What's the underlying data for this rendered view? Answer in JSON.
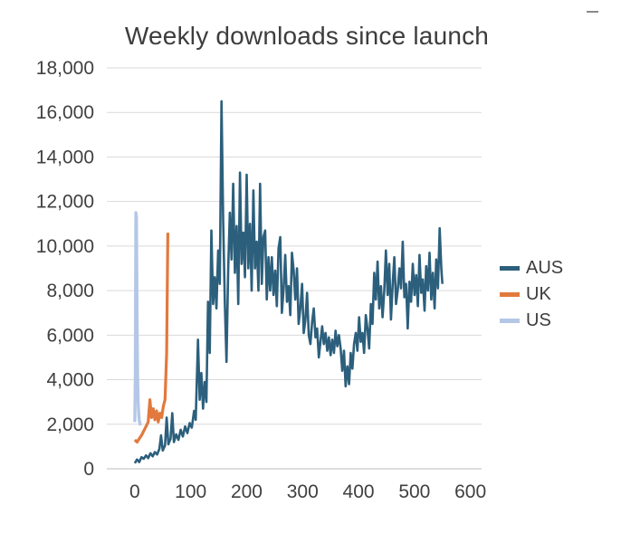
{
  "chart_data": {
    "type": "line",
    "title": "Weekly downloads since launch",
    "xlabel": "",
    "ylabel": "",
    "xlim": [
      0,
      600
    ],
    "ylim": [
      0,
      18000
    ],
    "grid": true,
    "legend_position": "right",
    "x_ticks": [
      0,
      100,
      200,
      300,
      400,
      500,
      600
    ],
    "x_tick_labels": [
      "0",
      "100",
      "200",
      "300",
      "400",
      "500",
      "600"
    ],
    "y_ticks": [
      0,
      2000,
      4000,
      6000,
      8000,
      10000,
      12000,
      14000,
      16000,
      18000
    ],
    "y_tick_labels": [
      "0",
      "2,000",
      "4,000",
      "6,000",
      "8,000",
      "10,000",
      "12,000",
      "14,000",
      "16,000",
      "18,000"
    ],
    "colors": {
      "grid": "#d9d9d9",
      "axis": "#bdbdbd",
      "text": "#404040",
      "title": "#3d3d3d"
    },
    "series": [
      {
        "name": "AUS",
        "color": "#2c5f7c",
        "width": 2.6,
        "points": [
          [
            0,
            250
          ],
          [
            4,
            420
          ],
          [
            8,
            300
          ],
          [
            12,
            520
          ],
          [
            16,
            450
          ],
          [
            20,
            600
          ],
          [
            24,
            480
          ],
          [
            28,
            700
          ],
          [
            32,
            560
          ],
          [
            36,
            750
          ],
          [
            40,
            640
          ],
          [
            44,
            900
          ],
          [
            47,
            1500
          ],
          [
            50,
            820
          ],
          [
            54,
            1050
          ],
          [
            57,
            2300
          ],
          [
            60,
            1100
          ],
          [
            64,
            1350
          ],
          [
            67,
            2500
          ],
          [
            70,
            1200
          ],
          [
            74,
            1550
          ],
          [
            78,
            1300
          ],
          [
            82,
            1750
          ],
          [
            86,
            1450
          ],
          [
            90,
            1900
          ],
          [
            94,
            1600
          ],
          [
            98,
            2050
          ],
          [
            102,
            1850
          ],
          [
            106,
            2600
          ],
          [
            109,
            2200
          ],
          [
            113,
            5800
          ],
          [
            116,
            3100
          ],
          [
            119,
            4300
          ],
          [
            122,
            2700
          ],
          [
            125,
            3900
          ],
          [
            128,
            3000
          ],
          [
            131,
            7500
          ],
          [
            134,
            5200
          ],
          [
            137,
            10700
          ],
          [
            140,
            7400
          ],
          [
            143,
            8600
          ],
          [
            146,
            7200
          ],
          [
            149,
            9800
          ],
          [
            152,
            8300
          ],
          [
            155,
            16500
          ],
          [
            158,
            11200
          ],
          [
            161,
            7400
          ],
          [
            164,
            4800
          ],
          [
            167,
            9000
          ],
          [
            170,
            11500
          ],
          [
            173,
            9400
          ],
          [
            176,
            12800
          ],
          [
            179,
            8800
          ],
          [
            182,
            10900
          ],
          [
            185,
            7400
          ],
          [
            188,
            13300
          ],
          [
            191,
            9200
          ],
          [
            194,
            10600
          ],
          [
            197,
            8600
          ],
          [
            200,
            13200
          ],
          [
            203,
            9000
          ],
          [
            206,
            11000
          ],
          [
            209,
            8000
          ],
          [
            212,
            12500
          ],
          [
            215,
            9000
          ],
          [
            218,
            10200
          ],
          [
            221,
            8000
          ],
          [
            224,
            12800
          ],
          [
            227,
            8300
          ],
          [
            230,
            10400
          ],
          [
            233,
            10700
          ],
          [
            236,
            7600
          ],
          [
            239,
            9500
          ],
          [
            242,
            8000
          ],
          [
            245,
            9500
          ],
          [
            248,
            7800
          ],
          [
            251,
            8900
          ],
          [
            254,
            7300
          ],
          [
            257,
            9900
          ],
          [
            260,
            10400
          ],
          [
            263,
            7000
          ],
          [
            266,
            8100
          ],
          [
            269,
            9600
          ],
          [
            272,
            7500
          ],
          [
            275,
            8200
          ],
          [
            278,
            6900
          ],
          [
            281,
            9700
          ],
          [
            284,
            8900
          ],
          [
            287,
            7600
          ],
          [
            290,
            9000
          ],
          [
            293,
            6500
          ],
          [
            296,
            7200
          ],
          [
            299,
            8300
          ],
          [
            302,
            6100
          ],
          [
            305,
            6700
          ],
          [
            308,
            7900
          ],
          [
            311,
            6000
          ],
          [
            314,
            5600
          ],
          [
            317,
            6600
          ],
          [
            320,
            7200
          ],
          [
            323,
            5900
          ],
          [
            326,
            6300
          ],
          [
            329,
            5000
          ],
          [
            332,
            5700
          ],
          [
            335,
            6400
          ],
          [
            338,
            5600
          ],
          [
            341,
            6100
          ],
          [
            344,
            5300
          ],
          [
            347,
            5900
          ],
          [
            350,
            5100
          ],
          [
            353,
            5800
          ],
          [
            356,
            5200
          ],
          [
            359,
            6200
          ],
          [
            362,
            5500
          ],
          [
            365,
            6000
          ],
          [
            368,
            5400
          ],
          [
            371,
            4400
          ],
          [
            374,
            5300
          ],
          [
            377,
            3700
          ],
          [
            380,
            4600
          ],
          [
            383,
            3800
          ],
          [
            386,
            5200
          ],
          [
            389,
            4500
          ],
          [
            392,
            5600
          ],
          [
            395,
            6100
          ],
          [
            398,
            5300
          ],
          [
            401,
            6800
          ],
          [
            404,
            5700
          ],
          [
            407,
            6100
          ],
          [
            410,
            5200
          ],
          [
            413,
            6900
          ],
          [
            416,
            6300
          ],
          [
            419,
            5400
          ],
          [
            422,
            7400
          ],
          [
            425,
            6500
          ],
          [
            428,
            8800
          ],
          [
            431,
            7600
          ],
          [
            434,
            9300
          ],
          [
            437,
            7200
          ],
          [
            440,
            8200
          ],
          [
            443,
            6800
          ],
          [
            446,
            8000
          ],
          [
            449,
            9800
          ],
          [
            452,
            7800
          ],
          [
            455,
            9200
          ],
          [
            458,
            6700
          ],
          [
            461,
            8300
          ],
          [
            464,
            9500
          ],
          [
            467,
            7400
          ],
          [
            470,
            8000
          ],
          [
            473,
            9000
          ],
          [
            476,
            8100
          ],
          [
            479,
            10200
          ],
          [
            482,
            7700
          ],
          [
            485,
            8300
          ],
          [
            488,
            6300
          ],
          [
            491,
            8400
          ],
          [
            494,
            7500
          ],
          [
            497,
            9200
          ],
          [
            500,
            7800
          ],
          [
            503,
            8700
          ],
          [
            506,
            7300
          ],
          [
            509,
            9600
          ],
          [
            512,
            7900
          ],
          [
            515,
            8500
          ],
          [
            518,
            7100
          ],
          [
            521,
            9100
          ],
          [
            524,
            8000
          ],
          [
            527,
            9700
          ],
          [
            530,
            7600
          ],
          [
            533,
            8800
          ],
          [
            536,
            7200
          ],
          [
            539,
            9400
          ],
          [
            542,
            8100
          ],
          [
            545,
            10800
          ],
          [
            548,
            9000
          ],
          [
            550,
            8300
          ]
        ]
      },
      {
        "name": "UK",
        "color": "#e2793d",
        "width": 3.2,
        "points": [
          [
            0,
            1300
          ],
          [
            4,
            1200
          ],
          [
            8,
            1350
          ],
          [
            12,
            1500
          ],
          [
            16,
            1700
          ],
          [
            20,
            1900
          ],
          [
            24,
            2100
          ],
          [
            27,
            3100
          ],
          [
            30,
            2300
          ],
          [
            33,
            2700
          ],
          [
            36,
            2200
          ],
          [
            39,
            2600
          ],
          [
            42,
            2100
          ],
          [
            45,
            2500
          ],
          [
            48,
            2300
          ],
          [
            51,
            2800
          ],
          [
            54,
            3100
          ],
          [
            57,
            5200
          ],
          [
            59,
            10600
          ]
        ]
      },
      {
        "name": "US",
        "color": "#b4c7e7",
        "width": 3.4,
        "points": [
          [
            0,
            2100
          ],
          [
            1,
            4200
          ],
          [
            2,
            11500
          ],
          [
            3,
            11300
          ],
          [
            4,
            6800
          ],
          [
            5,
            4100
          ],
          [
            6,
            3000
          ],
          [
            7,
            2500
          ],
          [
            8,
            2200
          ],
          [
            9,
            2050
          ],
          [
            10,
            1950
          ]
        ]
      }
    ]
  }
}
